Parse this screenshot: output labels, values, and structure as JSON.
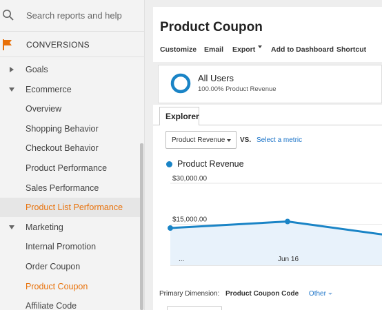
{
  "sidebar": {
    "search_placeholder": "Search reports and help",
    "section_title": "CONVERSIONS",
    "items": [
      {
        "label": "Goals",
        "kind": "group",
        "expanded": false
      },
      {
        "label": "Ecommerce",
        "kind": "group",
        "expanded": true
      },
      {
        "label": "Overview",
        "kind": "sub"
      },
      {
        "label": "Shopping Behavior",
        "kind": "sub"
      },
      {
        "label": "Checkout Behavior",
        "kind": "sub"
      },
      {
        "label": "Product Performance",
        "kind": "sub"
      },
      {
        "label": "Sales Performance",
        "kind": "sub"
      },
      {
        "label": "Product List Performance",
        "kind": "sub",
        "active": true
      },
      {
        "label": "Marketing",
        "kind": "group",
        "expanded": true
      },
      {
        "label": "Internal Promotion",
        "kind": "sub"
      },
      {
        "label": "Order Coupon",
        "kind": "sub"
      },
      {
        "label": "Product Coupon",
        "kind": "sub",
        "current": true
      },
      {
        "label": "Affiliate Code",
        "kind": "sub"
      }
    ]
  },
  "header": {
    "title": "Product Coupon",
    "actions": {
      "customize": "Customize",
      "email": "Email",
      "export": "Export",
      "add_to_dashboard": "Add to Dashboard",
      "shortcut": "Shortcut"
    }
  },
  "segment": {
    "name": "All Users",
    "subtitle": "100.00% Product Revenue"
  },
  "explorer": {
    "tab_label": "Explorer",
    "metric_select": "Product Revenue",
    "vs_label": "VS.",
    "select_metric_link": "Select a metric"
  },
  "chart_data": {
    "type": "area",
    "legend": [
      "Product Revenue"
    ],
    "y_tick_labels": [
      "$30,000.00",
      "$15,000.00"
    ],
    "x_tick_labels": [
      "...",
      "Jun 16"
    ],
    "series": [
      {
        "name": "Product Revenue",
        "values": [
          13600,
          16000,
          11000
        ]
      }
    ],
    "ylim": [
      0,
      30000
    ],
    "grid": true
  },
  "primary_dimension": {
    "label": "Primary Dimension:",
    "value": "Product Coupon Code",
    "other": "Other"
  },
  "colors": {
    "accent_orange": "#e8710a",
    "series_blue": "#1a84c6",
    "link_blue": "#1a73c8"
  }
}
